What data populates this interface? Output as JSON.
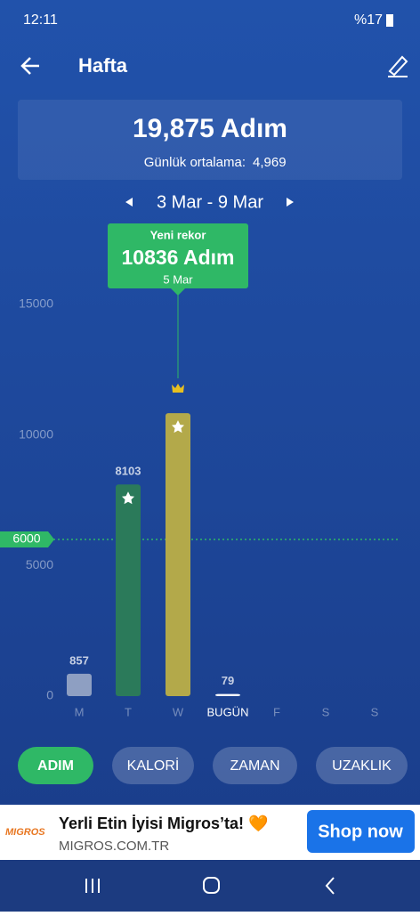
{
  "status_bar": {
    "time": "12:11",
    "battery": "%17"
  },
  "header": {
    "title": "Hafta"
  },
  "summary": {
    "total": "19,875 Adım",
    "average_label": "Günlük ortalama:",
    "average": "4,969"
  },
  "date_range": "3 Mar - 9 Mar",
  "tooltip": {
    "title": "Yeni rekor",
    "value": "10836 Adım",
    "date": "5 Mar"
  },
  "chart_data": {
    "type": "bar",
    "categories": [
      "M",
      "T",
      "W",
      "BUGÜN",
      "F",
      "S",
      "S"
    ],
    "values": [
      857,
      8103,
      10836,
      79,
      null,
      null,
      null
    ],
    "colors": [
      "#8e9fc2",
      "#2b7a5a",
      "#b3a94a",
      "#ffffff",
      "#ffffff",
      "#ffffff",
      "#ffffff"
    ],
    "ylim": [
      0,
      15000
    ],
    "yticks": [
      0,
      5000,
      10000,
      15000
    ],
    "goal": 6000,
    "goal_color": "#2fb866"
  },
  "tabs": [
    "ADIM",
    "KALORİ",
    "ZAMAN",
    "UZAKLIK"
  ],
  "ad": {
    "brand": "MIGROS",
    "title": "Yerli Etin İyisi Migros’ta! 🧡",
    "url": "MIGROS.COM.TR",
    "button": "Shop now"
  }
}
